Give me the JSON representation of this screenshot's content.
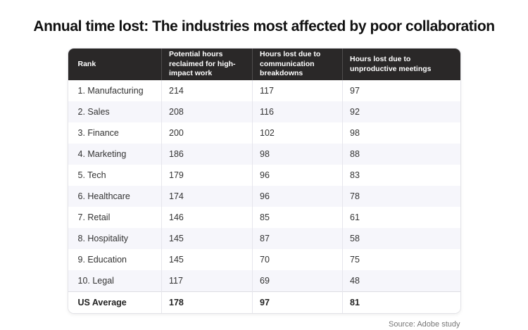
{
  "title": "Annual time lost: The industries most affected by poor collaboration",
  "source": "Source: Adobe study",
  "colors": {
    "header_bg": "#2a2828",
    "header_text": "#ffffff",
    "alt_row_bg": "#f6f6fb",
    "body_text": "#333333",
    "title_text": "#111111",
    "source_text": "#767676",
    "divider": "#e6e6ec"
  },
  "chart_data": {
    "type": "table",
    "title": "Annual time lost: The industries most affected by poor collaboration",
    "columns": [
      "Rank",
      "Potential hours reclaimed for high-impact work",
      "Hours lost due to communication breakdowns",
      "Hours lost due to unproductive meetings"
    ],
    "rows": [
      [
        "1. Manufacturing",
        214,
        117,
        97
      ],
      [
        "2. Sales",
        208,
        116,
        92
      ],
      [
        "3. Finance",
        200,
        102,
        98
      ],
      [
        "4. Marketing",
        186,
        98,
        88
      ],
      [
        "5. Tech",
        179,
        96,
        83
      ],
      [
        "6. Healthcare",
        174,
        96,
        78
      ],
      [
        "7. Retail",
        146,
        85,
        61
      ],
      [
        "8. Hospitality",
        145,
        87,
        58
      ],
      [
        "9. Education",
        145,
        70,
        75
      ],
      [
        "10. Legal",
        117,
        69,
        48
      ],
      [
        "US Average",
        178,
        97,
        81
      ]
    ],
    "summary_row": "US Average",
    "source": "Source: Adobe study",
    "layout": {
      "header_style": "dark",
      "row_striping": true,
      "legend": "none"
    }
  }
}
